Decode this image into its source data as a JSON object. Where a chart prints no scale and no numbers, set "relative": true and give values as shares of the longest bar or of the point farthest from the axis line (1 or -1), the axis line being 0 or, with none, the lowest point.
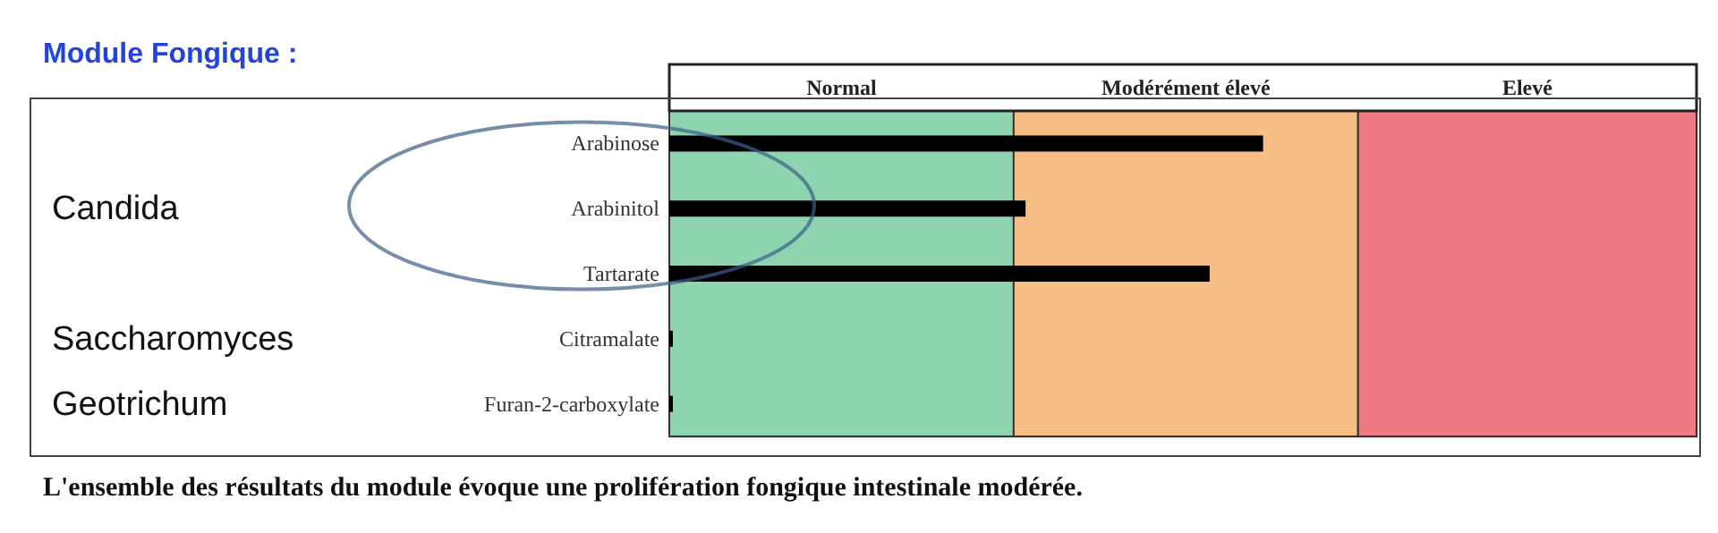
{
  "chart_data": {
    "type": "bar",
    "orientation": "horizontal",
    "relative": true,
    "title": "Module Fongique :",
    "categories": [
      "Arabinose",
      "Arabinitol",
      "Tartarate",
      "Citramalate",
      "Furan-2-carboxylate"
    ],
    "values": [
      1,
      0.6,
      0.91,
      0.006,
      0.006
    ],
    "color": "#000000",
    "bands": [
      {
        "axis": "x",
        "from": 0,
        "to": 0.58,
        "label": "Normal",
        "color": "#8fd4b0"
      },
      {
        "axis": "x",
        "from": 0.58,
        "to": 1.16,
        "label": "Modérément élevé",
        "color": "#f7bd86"
      },
      {
        "axis": "x",
        "from": 1.16,
        "to": 1.73,
        "label": "Elevé",
        "color": "#f07a84"
      }
    ],
    "annotations": [
      "Candida",
      "Saccharomyces",
      "Geotrichum",
      "L'ensemble des résultats du module évoque une prolifération fongique intestinale modérée."
    ],
    "legend": false
  }
}
